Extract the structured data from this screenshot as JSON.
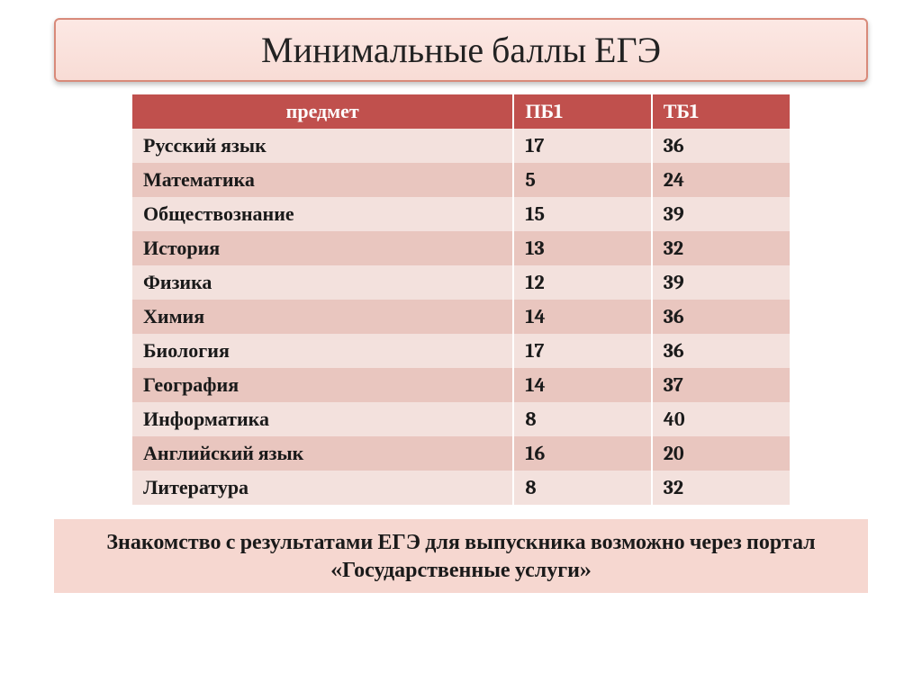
{
  "title": "Минимальные баллы ЕГЭ",
  "table": {
    "type": "table",
    "columns": [
      "предмет",
      "ПБ1",
      "ТБ1"
    ],
    "rows": [
      [
        "Русский язык",
        "17",
        "36"
      ],
      [
        "Математика",
        "5",
        "24"
      ],
      [
        "Обществознание",
        "15",
        "39"
      ],
      [
        "История",
        "13",
        "32"
      ],
      [
        "Физика",
        "12",
        "39"
      ],
      [
        "Химия",
        "14",
        "36"
      ],
      [
        "Биология",
        "17",
        "36"
      ],
      [
        "География",
        "14",
        "37"
      ],
      [
        "Информатика",
        "8",
        "40"
      ],
      [
        "Английский язык",
        "16",
        "20"
      ],
      [
        "Литература",
        "8",
        "32"
      ]
    ],
    "header_bg": "#c0504d",
    "header_fg": "#ffffff",
    "row_odd_bg": "#f3e1dd",
    "row_even_bg": "#e9c6bf",
    "cell_fg": "#1a1a1a",
    "font_size_pt": 17,
    "col_widths_pct": [
      58,
      21,
      21
    ]
  },
  "footer": "Знакомство с результатами ЕГЭ для выпускника возможно через портал «Государственные услуги»",
  "title_style": {
    "bg_gradient_top": "#fce8e4",
    "bg_gradient_bottom": "#f8dcd5",
    "border_color": "#d88a7a",
    "font_size_pt": 30,
    "fg": "#222222"
  },
  "footer_style": {
    "bg": "#f6d7d0",
    "fg": "#1a1a1a",
    "font_size_pt": 18
  },
  "page_bg": "#ffffff"
}
